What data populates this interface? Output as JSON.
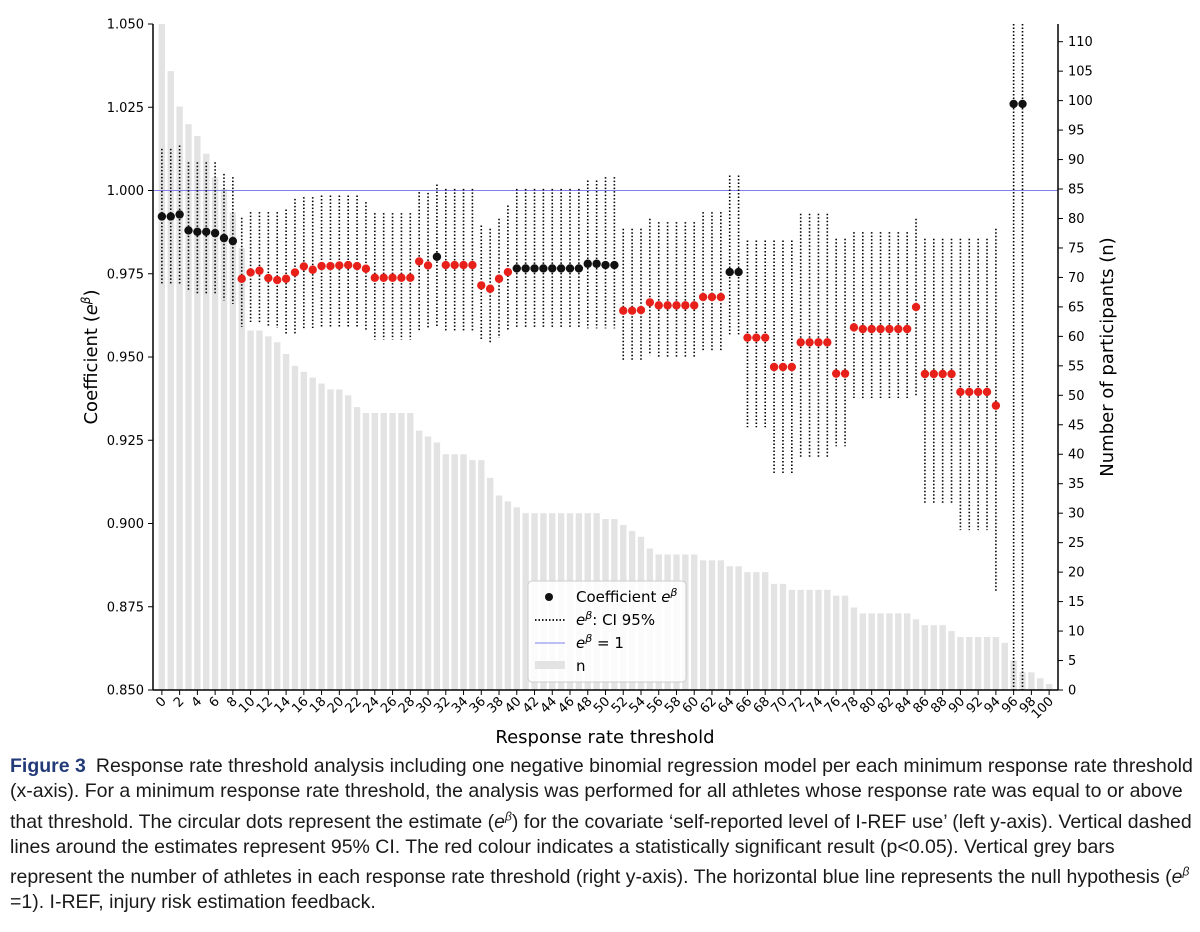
{
  "chart_data": {
    "type": "scatter",
    "xlabel": "Response rate threshold",
    "ylabel": "Coefficient (e^β)",
    "ylabel_main": "Coefficient (",
    "ylabel_e": "e",
    "ylabel_sup": "β",
    "ylabel_end": ")",
    "y2label": "Number of participants (n)",
    "ylim": [
      0.85,
      1.05
    ],
    "y2lim": [
      0,
      113
    ],
    "xlim": [
      -1,
      101
    ],
    "grid": false,
    "legend_position": "lower-center",
    "x_ticks": [
      "0",
      "2",
      "4",
      "6",
      "8",
      "10",
      "12",
      "14",
      "16",
      "18",
      "20",
      "22",
      "24",
      "26",
      "28",
      "30",
      "32",
      "34",
      "36",
      "38",
      "40",
      "42",
      "44",
      "46",
      "48",
      "50",
      "52",
      "54",
      "56",
      "58",
      "60",
      "62",
      "64",
      "66",
      "68",
      "70",
      "72",
      "74",
      "76",
      "78",
      "80",
      "82",
      "84",
      "86",
      "88",
      "90",
      "92",
      "94",
      "96",
      "98",
      "100"
    ],
    "y_ticks": [
      "0.850",
      "0.875",
      "0.900",
      "0.925",
      "0.950",
      "0.975",
      "1.000",
      "1.025",
      "1.050"
    ],
    "y2_ticks": [
      "0",
      "5",
      "10",
      "15",
      "20",
      "25",
      "30",
      "35",
      "40",
      "45",
      "50",
      "55",
      "60",
      "65",
      "70",
      "75",
      "80",
      "85",
      "90",
      "95",
      "100",
      "105",
      "110"
    ],
    "reference_line": {
      "y": 1.0,
      "label": "e^β = 1",
      "color": "#8080f0"
    },
    "colors": {
      "significant": "#e8201a",
      "not_significant": "#111111",
      "bars": "#e3e3e3",
      "ci": "#000000"
    },
    "legend": {
      "coefficient_label": "Coefficient ",
      "ci_label": ": CI 95%",
      "ref_label": " = 1",
      "n_label": "n",
      "e": "e",
      "beta": "β"
    },
    "x": [
      0,
      1,
      2,
      3,
      4,
      5,
      6,
      7,
      8,
      9,
      10,
      11,
      12,
      13,
      14,
      15,
      16,
      17,
      18,
      19,
      20,
      21,
      22,
      23,
      24,
      25,
      26,
      27,
      28,
      29,
      30,
      31,
      32,
      33,
      34,
      35,
      36,
      37,
      38,
      39,
      40,
      41,
      42,
      43,
      44,
      45,
      46,
      47,
      48,
      49,
      50,
      51,
      52,
      53,
      54,
      55,
      56,
      57,
      58,
      59,
      60,
      61,
      62,
      63,
      64,
      65,
      66,
      67,
      68,
      69,
      70,
      71,
      72,
      73,
      74,
      75,
      76,
      77,
      78,
      79,
      80,
      81,
      82,
      83,
      84,
      85,
      86,
      87,
      88,
      89,
      90,
      91,
      92,
      93,
      94,
      95,
      96,
      97,
      98,
      99,
      100
    ],
    "series": [
      {
        "name": "Coefficient e^β",
        "estimate": [
          0.9922,
          0.9922,
          0.9928,
          0.988,
          0.9876,
          0.9876,
          0.9872,
          0.9857,
          0.9848,
          0.9735,
          0.9754,
          0.9759,
          0.9737,
          0.9731,
          0.9735,
          0.9754,
          0.9772,
          0.9762,
          0.9773,
          0.9773,
          0.9775,
          0.9776,
          0.9773,
          0.9765,
          0.9738,
          0.9738,
          0.9738,
          0.9738,
          0.9738,
          0.9787,
          0.9775,
          0.9801,
          0.9776,
          0.9776,
          0.9776,
          0.9776,
          0.9715,
          0.9705,
          0.9735,
          0.9755,
          0.9766,
          0.9766,
          0.9766,
          0.9766,
          0.9766,
          0.9766,
          0.9766,
          0.9766,
          0.978,
          0.978,
          0.9776,
          0.9776,
          0.9639,
          0.9639,
          0.9641,
          0.9664,
          0.9655,
          0.9655,
          0.9655,
          0.9655,
          0.9655,
          0.968,
          0.968,
          0.968,
          0.9755,
          0.9755,
          0.9558,
          0.9558,
          0.9558,
          0.947,
          0.947,
          0.947,
          0.9544,
          0.9544,
          0.9544,
          0.9544,
          0.945,
          0.945,
          0.9589,
          0.9584,
          0.9584,
          0.9584,
          0.9584,
          0.9584,
          0.9584,
          0.965,
          0.9449,
          0.9449,
          0.9449,
          0.9449,
          0.9395,
          0.9395,
          0.9395,
          0.9395,
          0.9354,
          null,
          1.026,
          1.026,
          null,
          null,
          null
        ],
        "ci_low": [
          0.9715,
          0.9715,
          0.9718,
          0.9697,
          0.969,
          0.969,
          0.9688,
          0.967,
          0.9659,
          0.959,
          0.9605,
          0.9604,
          0.9589,
          0.9587,
          0.9567,
          0.9567,
          0.9583,
          0.9587,
          0.9587,
          0.9587,
          0.9587,
          0.9587,
          0.9587,
          0.9578,
          0.9552,
          0.9552,
          0.9552,
          0.9552,
          0.9552,
          0.958,
          0.9587,
          0.9587,
          0.9577,
          0.9577,
          0.9577,
          0.9577,
          0.955,
          0.954,
          0.9557,
          0.9578,
          0.9586,
          0.9586,
          0.9586,
          0.9586,
          0.9586,
          0.9586,
          0.9586,
          0.9586,
          0.9586,
          0.9586,
          0.9586,
          0.9586,
          0.9487,
          0.9487,
          0.9487,
          0.9505,
          0.9495,
          0.9495,
          0.9495,
          0.9495,
          0.9495,
          0.9517,
          0.9517,
          0.9517,
          0.9568,
          0.9568,
          0.9289,
          0.9289,
          0.9289,
          0.9149,
          0.9149,
          0.9149,
          0.9195,
          0.9195,
          0.9195,
          0.9195,
          0.9232,
          0.9232,
          0.9377,
          0.9377,
          0.9377,
          0.9377,
          0.9377,
          0.9377,
          0.9377,
          0.9385,
          0.9059,
          0.9059,
          0.9059,
          0.9059,
          0.898,
          0.898,
          0.898,
          0.898,
          0.8795,
          null,
          0.85,
          0.85,
          null,
          null,
          null
        ],
        "ci_high": [
          1.0125,
          1.0125,
          1.0135,
          1.0085,
          1.0085,
          1.0085,
          1.0085,
          1.005,
          1.004,
          0.9918,
          0.9935,
          0.9935,
          0.9935,
          0.9935,
          0.9943,
          0.9975,
          0.998,
          0.998,
          0.9985,
          0.9985,
          0.9985,
          0.9985,
          0.9985,
          0.9965,
          0.9932,
          0.9932,
          0.9932,
          0.9932,
          0.9932,
          0.9995,
          0.9993,
          1.0018,
          1.0005,
          1.0005,
          1.0005,
          1.0005,
          0.9895,
          0.9885,
          0.9915,
          0.9955,
          1.0005,
          1.0005,
          1.0005,
          1.0005,
          1.0005,
          1.0005,
          1.0005,
          1.0005,
          1.003,
          1.003,
          1.004,
          1.004,
          0.9885,
          0.9885,
          0.9885,
          0.9915,
          0.9905,
          0.9905,
          0.9905,
          0.9905,
          0.9905,
          0.9935,
          0.9935,
          0.9935,
          1.0045,
          1.0045,
          0.985,
          0.985,
          0.985,
          0.985,
          0.985,
          0.985,
          0.993,
          0.993,
          0.993,
          0.993,
          0.9855,
          0.9855,
          0.9875,
          0.9875,
          0.9875,
          0.9875,
          0.9875,
          0.9875,
          0.9875,
          0.9915,
          0.9855,
          0.9855,
          0.9855,
          0.9855,
          0.9855,
          0.9855,
          0.9855,
          0.9855,
          0.9885,
          null,
          1.05,
          1.05,
          null,
          null,
          null
        ],
        "significant": [
          false,
          false,
          false,
          false,
          false,
          false,
          false,
          false,
          false,
          true,
          true,
          true,
          true,
          true,
          true,
          true,
          true,
          true,
          true,
          true,
          true,
          true,
          true,
          true,
          true,
          true,
          true,
          true,
          true,
          true,
          true,
          false,
          true,
          true,
          true,
          true,
          true,
          true,
          true,
          true,
          false,
          false,
          false,
          false,
          false,
          false,
          false,
          false,
          false,
          false,
          false,
          false,
          true,
          true,
          true,
          true,
          true,
          true,
          true,
          true,
          true,
          true,
          true,
          true,
          false,
          false,
          true,
          true,
          true,
          true,
          true,
          true,
          true,
          true,
          true,
          true,
          true,
          true,
          true,
          true,
          true,
          true,
          true,
          true,
          true,
          true,
          true,
          true,
          true,
          true,
          true,
          true,
          true,
          true,
          true,
          null,
          false,
          false,
          null,
          null,
          null
        ]
      },
      {
        "name": "n",
        "values": [
          113,
          105,
          99,
          96,
          94,
          91,
          87,
          85,
          81,
          75,
          61,
          61,
          60,
          59,
          57,
          55,
          54,
          53,
          52,
          51,
          51,
          50,
          48,
          47,
          47,
          47,
          47,
          47,
          47,
          44,
          43,
          42,
          40,
          40,
          40,
          39,
          39,
          36,
          33,
          32,
          31,
          30,
          30,
          30,
          30,
          30,
          30,
          30,
          30,
          30,
          29,
          29,
          28,
          27,
          26,
          24,
          23,
          23,
          23,
          23,
          23,
          22,
          22,
          22,
          21,
          21,
          20,
          20,
          20,
          18,
          18,
          17,
          17,
          17,
          17,
          17,
          16,
          16,
          14,
          13,
          13,
          13,
          13,
          13,
          13,
          12,
          11,
          11,
          11,
          10,
          9,
          9,
          9,
          9,
          9,
          8,
          5,
          3,
          3,
          2,
          1
        ]
      }
    ]
  },
  "caption": {
    "figure_label": "Figure 3",
    "text": "Response rate threshold analysis including one negative binomial regression model per each minimum response rate threshold (x-axis). For a minimum response rate threshold, the analysis was performed for all athletes whose response rate was equal to or above that threshold. The circular dots represent the estimate (e^β) for the covariate ‘self-reported level of I-REF use’ (left y-axis). Vertical dashed lines around the estimates represent 95% CI. The red colour indicates a statistically significant result (p<0.05). Vertical grey bars represent the number of athletes in each response rate threshold (right y-axis). The horizontal blue line represents the null hypothesis (e^β =1). I-REF, injury risk estimation feedback."
  }
}
